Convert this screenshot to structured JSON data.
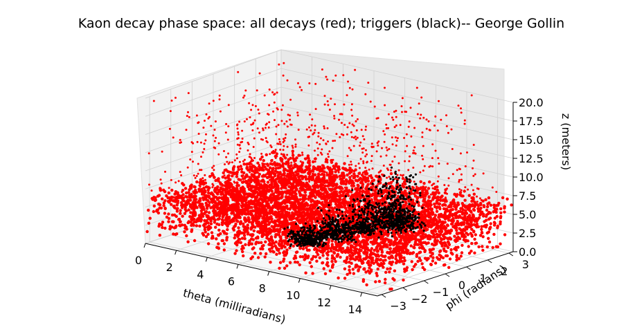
{
  "chart_data": {
    "type": "scatter",
    "projection": "3d",
    "title": "Kaon decay phase space: all decays (red); triggers (black)-- George Gollin",
    "xlabel": "theta (milliradians)",
    "ylabel": "phi (radians)",
    "zlabel": "z (meters)",
    "xlim": [
      0,
      15
    ],
    "ylim": [
      -3.2,
      3.2
    ],
    "zlim": [
      0,
      20
    ],
    "xticks": [
      "0",
      "2",
      "4",
      "6",
      "8",
      "10",
      "12",
      "14"
    ],
    "yticks": [
      "−3",
      "−2",
      "−1",
      "0",
      "1",
      "2",
      "3"
    ],
    "zticks": [
      "0.0",
      "2.5",
      "5.0",
      "7.5",
      "10.0",
      "12.5",
      "15.0",
      "17.5",
      "20.0"
    ],
    "grid": true,
    "series": [
      {
        "name": "all decays",
        "color": "#ff0000",
        "description_values": {
          "theta_range": [
            0,
            15
          ],
          "phi_range": [
            -3.2,
            3.2
          ],
          "z_dense_max": 7,
          "z_sparse_max": 20
        }
      },
      {
        "name": "triggers",
        "color": "#000000",
        "clusters": [
          {
            "theta": 6.0,
            "phi": 0.0,
            "z_peak": 2.0
          },
          {
            "theta": 6.5,
            "phi": 1.0,
            "z_peak": 3.5
          },
          {
            "theta": 7.0,
            "phi": 2.0,
            "z_peak": 5.0
          },
          {
            "theta": 7.5,
            "phi": 2.8,
            "z_peak": 6.0
          },
          {
            "theta": 8.0,
            "phi": 3.1,
            "z_peak": 7.0
          }
        ]
      }
    ]
  }
}
